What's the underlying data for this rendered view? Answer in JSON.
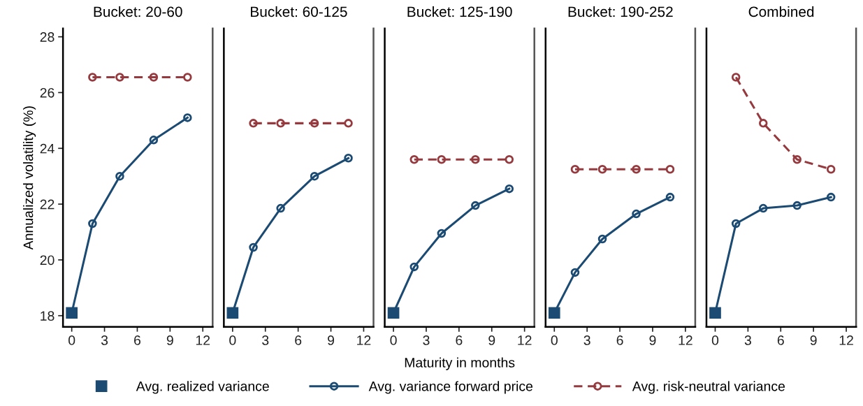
{
  "chart_data": [
    {
      "type": "line",
      "title": "Bucket: 20-60",
      "ylabel": "Annualized volatility (%)",
      "xlim": [
        -0.8,
        12.9
      ],
      "xticks": [
        0,
        3,
        6,
        9,
        12
      ],
      "ylim": [
        17.6,
        28.3
      ],
      "yticks": [
        18,
        20,
        22,
        24,
        26,
        28
      ],
      "legend": "bottom",
      "grid": false,
      "series": [
        {
          "name": "Avg. realized variance",
          "type": "scatter",
          "marker": "square",
          "color": "#1b4a72",
          "x": [
            0
          ],
          "values": [
            18.1
          ]
        },
        {
          "name": "Avg. variance forward price",
          "type": "line",
          "marker": "circle",
          "line_style": "solid",
          "color": "#1b4a72",
          "x": [
            0,
            1.9,
            4.4,
            7.5,
            10.6
          ],
          "values": [
            18.1,
            21.3,
            23.0,
            24.3,
            25.1
          ]
        },
        {
          "name": "Avg. risk-neutral variance",
          "type": "line",
          "marker": "circle",
          "line_style": "dashed",
          "color": "#953a3e",
          "x": [
            1.9,
            4.4,
            7.5,
            10.6
          ],
          "values": [
            26.55,
            26.55,
            26.55,
            26.55
          ]
        }
      ]
    },
    {
      "type": "line",
      "title": "Bucket: 60-125",
      "xlim": [
        -0.8,
        12.9
      ],
      "xticks": [
        0,
        3,
        6,
        9,
        12
      ],
      "ylim": [
        17.6,
        28.3
      ],
      "tick_labels": "x",
      "grid": false,
      "series": [
        {
          "type": "scatter",
          "marker": "square",
          "color": "#1b4a72",
          "x": [
            0
          ],
          "values": [
            18.1
          ]
        },
        {
          "type": "line",
          "marker": "circle",
          "line_style": "solid",
          "color": "#1b4a72",
          "x": [
            0,
            1.9,
            4.4,
            7.5,
            10.6
          ],
          "values": [
            18.1,
            20.45,
            21.85,
            23.0,
            23.65
          ]
        },
        {
          "type": "line",
          "marker": "circle",
          "line_style": "dashed",
          "color": "#953a3e",
          "x": [
            1.9,
            4.4,
            7.5,
            10.6
          ],
          "values": [
            24.9,
            24.9,
            24.9,
            24.9
          ]
        }
      ]
    },
    {
      "type": "line",
      "title": "Bucket: 125-190",
      "xlabel": "Maturity in months",
      "xlim": [
        -0.8,
        12.9
      ],
      "xticks": [
        0,
        3,
        6,
        9,
        12
      ],
      "ylim": [
        17.6,
        28.3
      ],
      "tick_labels": "x",
      "grid": false,
      "series": [
        {
          "type": "scatter",
          "marker": "square",
          "color": "#1b4a72",
          "x": [
            0
          ],
          "values": [
            18.1
          ]
        },
        {
          "type": "line",
          "marker": "circle",
          "line_style": "solid",
          "color": "#1b4a72",
          "x": [
            0,
            1.9,
            4.4,
            7.5,
            10.6
          ],
          "values": [
            18.1,
            19.75,
            20.95,
            21.95,
            22.55
          ]
        },
        {
          "type": "line",
          "marker": "circle",
          "line_style": "dashed",
          "color": "#953a3e",
          "x": [
            1.9,
            4.4,
            7.5,
            10.6
          ],
          "values": [
            23.6,
            23.6,
            23.6,
            23.6
          ]
        }
      ]
    },
    {
      "type": "line",
      "title": "Bucket: 190-252",
      "xlim": [
        -0.8,
        12.9
      ],
      "xticks": [
        0,
        3,
        6,
        9,
        12
      ],
      "ylim": [
        17.6,
        28.3
      ],
      "tick_labels": "x",
      "grid": false,
      "series": [
        {
          "type": "scatter",
          "marker": "square",
          "color": "#1b4a72",
          "x": [
            0
          ],
          "values": [
            18.1
          ]
        },
        {
          "type": "line",
          "marker": "circle",
          "line_style": "solid",
          "color": "#1b4a72",
          "x": [
            0,
            1.9,
            4.4,
            7.5,
            10.6
          ],
          "values": [
            18.1,
            19.55,
            20.75,
            21.65,
            22.25
          ]
        },
        {
          "type": "line",
          "marker": "circle",
          "line_style": "dashed",
          "color": "#953a3e",
          "x": [
            1.9,
            4.4,
            7.5,
            10.6
          ],
          "values": [
            23.25,
            23.25,
            23.25,
            23.25
          ]
        }
      ]
    },
    {
      "type": "line",
      "title": "Combined",
      "xlim": [
        -0.8,
        12.9
      ],
      "xticks": [
        0,
        3,
        6,
        9,
        12
      ],
      "ylim": [
        17.6,
        28.3
      ],
      "tick_labels": "x",
      "grid": false,
      "series": [
        {
          "type": "scatter",
          "marker": "square",
          "color": "#1b4a72",
          "x": [
            0
          ],
          "values": [
            18.1
          ]
        },
        {
          "type": "line",
          "marker": "circle",
          "line_style": "solid",
          "color": "#1b4a72",
          "x": [
            0,
            1.9,
            4.4,
            7.5,
            10.6
          ],
          "values": [
            18.1,
            21.3,
            21.85,
            21.95,
            22.25
          ]
        },
        {
          "type": "line",
          "marker": "circle",
          "line_style": "dashed",
          "color": "#953a3e",
          "x": [
            1.9,
            4.4,
            7.5,
            10.6
          ],
          "values": [
            26.55,
            24.9,
            23.6,
            23.25
          ]
        }
      ]
    }
  ]
}
